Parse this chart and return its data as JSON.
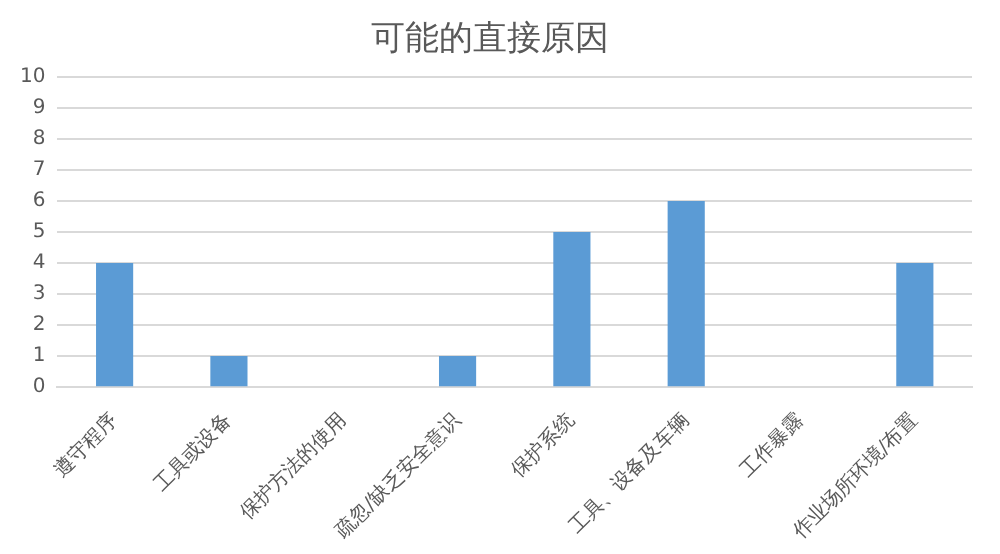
{
  "chart_data": {
    "type": "bar",
    "title": "可能的直接原因",
    "categories": [
      "遵守程序",
      "工具或设备",
      "保护方法的使用",
      "疏忽/缺乏安全意识",
      "保护系统",
      "工具、设备及车辆",
      "工作暴露",
      "作业场所环境/布置"
    ],
    "values": [
      4,
      1,
      0,
      1,
      5,
      6,
      0,
      4
    ],
    "color": "#5b9bd5",
    "ylim": [
      0,
      10
    ],
    "yticks": [
      0,
      1,
      2,
      3,
      4,
      5,
      6,
      7,
      8,
      9,
      10
    ],
    "grid": "y",
    "legend": false
  }
}
